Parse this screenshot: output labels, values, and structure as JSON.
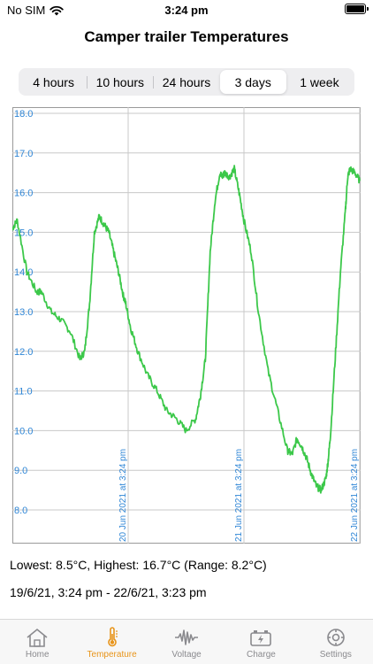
{
  "status": {
    "carrier": "No SIM",
    "time": "3:24 pm"
  },
  "title": "Camper trailer Temperatures",
  "segments": [
    "4 hours",
    "10 hours",
    "24 hours",
    "3 days",
    "1 week"
  ],
  "selected_segment": "3 days",
  "chart_data": {
    "type": "line",
    "title": "",
    "xlabel": "",
    "ylabel": "",
    "ylim": [
      7.5,
      18.0
    ],
    "yticks": [
      "18.0",
      "17.0",
      "16.0",
      "15.0",
      "14.0",
      "13.0",
      "12.0",
      "11.0",
      "10.0",
      "9.0",
      "8.0"
    ],
    "x_axis_range": [
      "19/6/21 3:24 pm",
      "22/6/21 3:23 pm"
    ],
    "xtick_labels": [
      "20 Jun 2021 at 3:24 pm",
      "21 Jun 2021 at 3:24 pm",
      "22 Jun 2021 at 3:24 pm"
    ],
    "xtick_hours": [
      24,
      48,
      72
    ],
    "grid": true,
    "series": [
      {
        "color": "#3cc84a",
        "x_hours": [
          0,
          1,
          3,
          5,
          6,
          8,
          10,
          12,
          14,
          15,
          16,
          17,
          18,
          19,
          20,
          21,
          22,
          23,
          23.5,
          24.5,
          26,
          28,
          30,
          32,
          34,
          36,
          38,
          39,
          40,
          41,
          42,
          43,
          43.5,
          44,
          45,
          46,
          47,
          48,
          49.5,
          51,
          53,
          55,
          57,
          58,
          59,
          60,
          61,
          62,
          63,
          64,
          65,
          65.5,
          66,
          67,
          68,
          69,
          69.5,
          70,
          71,
          72
        ],
        "y": [
          15.1,
          15.3,
          14.0,
          13.5,
          13.5,
          13.0,
          12.8,
          12.5,
          11.8,
          12.0,
          13.2,
          15.0,
          15.4,
          15.2,
          15.0,
          14.5,
          14.0,
          13.4,
          13.2,
          12.6,
          12.0,
          11.4,
          11.0,
          10.5,
          10.3,
          10.0,
          10.3,
          10.9,
          11.8,
          14.5,
          15.8,
          16.5,
          16.4,
          16.5,
          16.4,
          16.6,
          16.0,
          15.3,
          14.5,
          13.0,
          11.5,
          10.5,
          9.5,
          9.4,
          9.8,
          9.6,
          9.3,
          8.9,
          8.6,
          8.5,
          8.8,
          9.3,
          10.0,
          12.0,
          14.0,
          15.5,
          16.4,
          16.6,
          16.5,
          16.3
        ]
      }
    ]
  },
  "stats": {
    "range_line": "Lowest: 8.5°C, Highest: 16.7°C (Range: 8.2°C)",
    "period_line": "19/6/21, 3:24 pm - 22/6/21, 3:23 pm"
  },
  "tabs": [
    {
      "label": "Home",
      "icon": "house-icon"
    },
    {
      "label": "Temperature",
      "icon": "thermometer-icon"
    },
    {
      "label": "Voltage",
      "icon": "waveform-icon"
    },
    {
      "label": "Charge",
      "icon": "battery-charge-icon"
    },
    {
      "label": "Settings",
      "icon": "gear-icon"
    }
  ],
  "active_tab": "Temperature",
  "colors": {
    "accent": "#e8941a",
    "line": "#3cc84a",
    "axis_text": "#2f86d6"
  }
}
